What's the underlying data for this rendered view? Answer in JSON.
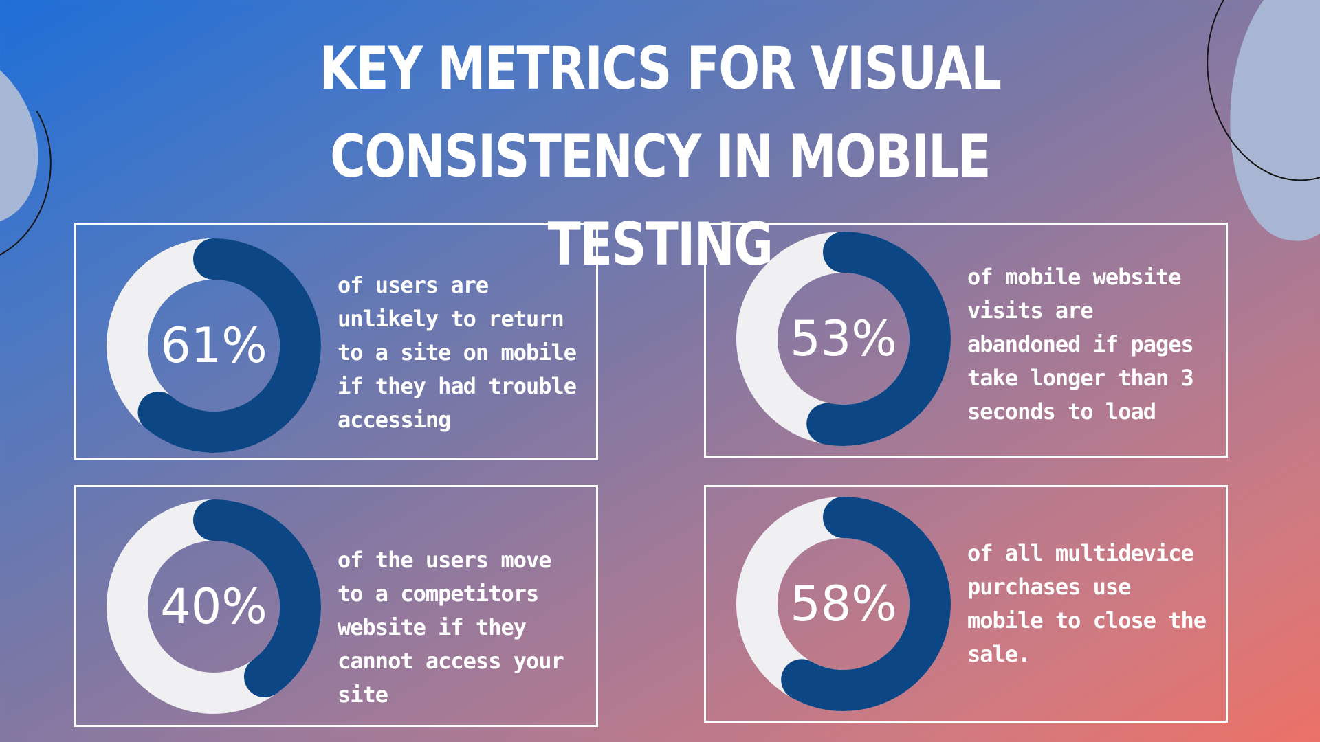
{
  "title": "KEY METRICS FOR VISUAL CONSISTENCY IN MOBILE TESTING",
  "colors": {
    "ring_track": "#f0f0f2",
    "ring_fill": "#0d4685",
    "text": "#ffffff"
  },
  "metrics": [
    {
      "value": "61%",
      "description": "of users are unlikely to return to a site on mobile if they had trouble accessing"
    },
    {
      "value": "53%",
      "description": "of mobile website visits are abandoned if pages take longer than 3 seconds to load"
    },
    {
      "value": "40%",
      "description": "of the users move to a competitors website if they cannot access your site"
    },
    {
      "value": "58%",
      "description": "of all multidevice purchases use mobile to close the sale."
    }
  ]
}
